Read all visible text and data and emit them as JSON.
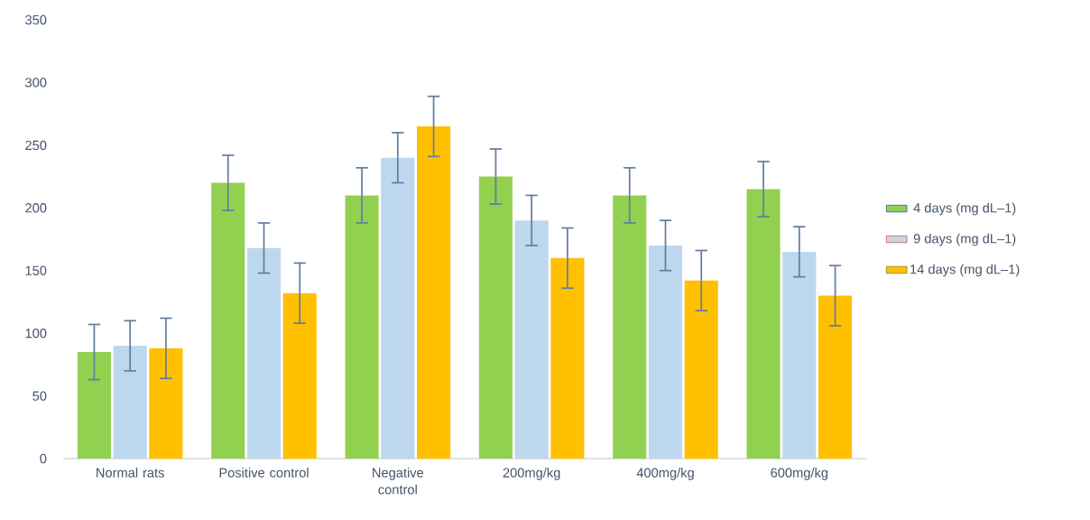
{
  "chart_data": {
    "type": "bar",
    "categories": [
      "Normal rats",
      "Positive control",
      "Negative control",
      "200mg/kg",
      "400mg/kg",
      "600mg/kg"
    ],
    "series": [
      {
        "name": "4 days (mg dL–1)",
        "color": "#92d050",
        "values": [
          85,
          220,
          210,
          225,
          210,
          215
        ],
        "errors": [
          22,
          22,
          22,
          22,
          22,
          22
        ]
      },
      {
        "name": "9 days (mg dL–1)",
        "color": "#bdd7ee",
        "values": [
          90,
          168,
          240,
          190,
          170,
          165
        ],
        "errors": [
          20,
          20,
          20,
          20,
          20,
          20
        ]
      },
      {
        "name": "14 days (mg dL–1)",
        "color": "#ffc000",
        "values": [
          88,
          132,
          265,
          160,
          142,
          130
        ],
        "errors": [
          24,
          24,
          24,
          24,
          24,
          24
        ]
      }
    ],
    "ylim": [
      0,
      350
    ],
    "yticks": [
      0,
      50,
      100,
      150,
      200,
      250,
      300,
      350
    ],
    "legend": "right"
  }
}
